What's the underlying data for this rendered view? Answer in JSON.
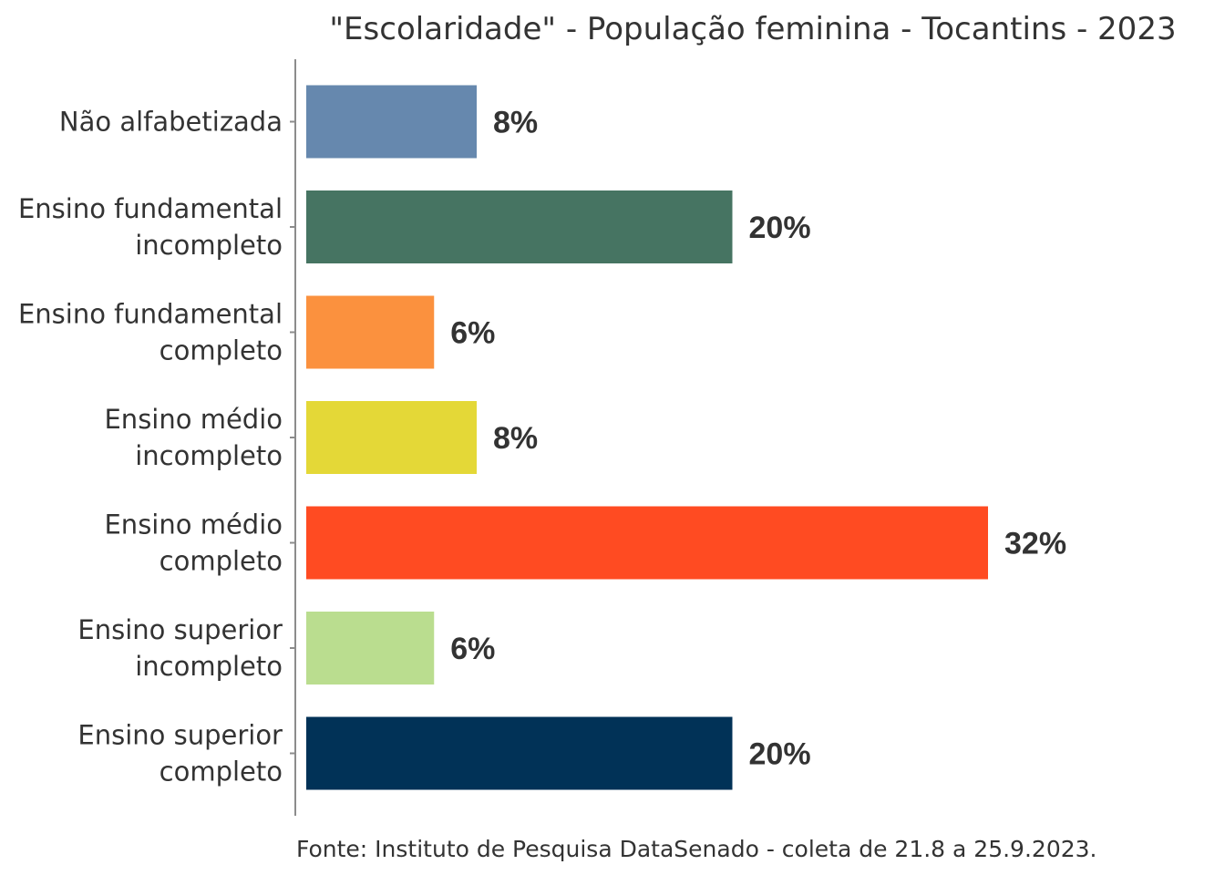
{
  "chart_data": {
    "type": "bar",
    "orientation": "horizontal",
    "title": "\"Escolaridade\" - População feminina - Tocantins - 2023",
    "categories": [
      "Não alfabetizada",
      "Ensino fundamental incompleto",
      "Ensino fundamental completo",
      "Ensino médio incompleto",
      "Ensino médio completo",
      "Ensino superior incompleto",
      "Ensino superior completo"
    ],
    "category_lines": [
      [
        "Não alfabetizada"
      ],
      [
        "Ensino fundamental",
        "incompleto"
      ],
      [
        "Ensino fundamental",
        "completo"
      ],
      [
        "Ensino médio",
        "incompleto"
      ],
      [
        "Ensino médio",
        "completo"
      ],
      [
        "Ensino superior",
        "incompleto"
      ],
      [
        "Ensino superior",
        "completo"
      ]
    ],
    "values": [
      8,
      20,
      6,
      8,
      32,
      6,
      20
    ],
    "value_labels": [
      "8%",
      "20%",
      "6%",
      "8%",
      "32%",
      "6%",
      "20%"
    ],
    "colors": [
      "#6688ae",
      "#467462",
      "#fb913e",
      "#e4d837",
      "#ff4b22",
      "#badd8f",
      "#013257"
    ],
    "xlim": [
      0,
      32
    ],
    "xlabel": "",
    "ylabel": "",
    "grid": false,
    "source": "Fonte: Instituto de Pesquisa DataSenado - coleta de 21.8 a 25.9.2023."
  }
}
